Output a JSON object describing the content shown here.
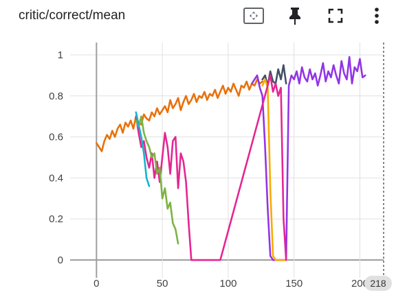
{
  "card": {
    "title": "critic/correct/mean"
  },
  "toolbar": {
    "fit_icon": "fit-domain-icon",
    "pin_icon": "pin-icon",
    "fullscreen_icon": "fullscreen-icon",
    "more_icon": "more-vert-icon"
  },
  "badge": {
    "step": "218"
  },
  "chart_data": {
    "type": "line",
    "title": "critic/correct/mean",
    "xlabel": "",
    "ylabel": "",
    "xlim": [
      -20,
      218
    ],
    "ylim": [
      -0.06,
      1.06
    ],
    "x_ticks": [
      0,
      50,
      100,
      150,
      200
    ],
    "y_ticks": [
      0,
      0.2,
      0.4,
      0.6,
      0.8,
      1
    ],
    "x_tick_labels": [
      "0",
      "50",
      "100",
      "150",
      "200"
    ],
    "y_tick_labels": [
      "0",
      "0.2",
      "0.4",
      "0.6",
      "0.8",
      "1"
    ],
    "grid": true,
    "legend": "none",
    "series": [
      {
        "color": "#e8710a",
        "x": [
          0,
          2,
          4,
          6,
          8,
          10,
          12,
          14,
          16,
          18,
          20,
          22,
          24,
          26,
          28,
          30,
          32,
          34,
          36,
          38,
          40,
          42,
          44,
          46,
          48,
          50,
          52,
          54,
          56,
          58,
          60,
          62,
          64,
          66,
          68,
          70,
          72,
          74,
          76,
          78,
          80,
          82,
          84,
          86,
          88,
          90,
          92,
          94,
          96,
          98,
          100,
          102,
          104,
          106,
          108,
          110,
          112,
          114,
          116,
          118,
          120,
          122,
          124,
          126
        ],
        "y": [
          0.57,
          0.55,
          0.53,
          0.58,
          0.61,
          0.59,
          0.63,
          0.6,
          0.64,
          0.66,
          0.62,
          0.67,
          0.65,
          0.68,
          0.64,
          0.7,
          0.67,
          0.66,
          0.71,
          0.69,
          0.68,
          0.72,
          0.7,
          0.74,
          0.71,
          0.73,
          0.75,
          0.72,
          0.78,
          0.74,
          0.76,
          0.79,
          0.73,
          0.77,
          0.8,
          0.76,
          0.78,
          0.81,
          0.77,
          0.8,
          0.79,
          0.82,
          0.78,
          0.81,
          0.8,
          0.83,
          0.79,
          0.82,
          0.85,
          0.81,
          0.84,
          0.82,
          0.86,
          0.83,
          0.8,
          0.85,
          0.84,
          0.87,
          0.83,
          0.86,
          0.85,
          0.88,
          0.86,
          0.87
        ]
      },
      {
        "color": "#425066",
        "x": [
          126,
          128,
          130,
          132,
          134,
          136,
          138,
          140,
          142,
          144
        ],
        "y": [
          0.88,
          0.9,
          0.85,
          0.92,
          0.87,
          0.86,
          0.93,
          0.88,
          0.95,
          0.86
        ]
      },
      {
        "color": "#9334e6",
        "x": [
          118,
          120,
          122,
          124,
          126,
          128,
          130,
          132,
          134,
          136,
          138,
          140,
          142,
          144,
          146,
          148,
          150,
          152,
          154,
          156,
          158,
          160,
          162,
          164,
          166,
          168,
          170,
          172,
          174,
          176,
          178,
          180,
          182,
          184,
          186,
          188,
          190,
          192,
          194,
          196,
          198,
          200,
          202,
          204
        ],
        "y": [
          0.86,
          0.88,
          0.9,
          0.84,
          0.8,
          0.55,
          0.25,
          0.02,
          0.0,
          0.0,
          0.0,
          0.0,
          0.0,
          0.0,
          0.85,
          0.9,
          0.88,
          0.92,
          0.86,
          0.94,
          0.89,
          0.87,
          0.93,
          0.88,
          0.91,
          0.85,
          0.9,
          0.96,
          0.87,
          0.92,
          0.89,
          0.95,
          0.9,
          0.86,
          0.97,
          0.91,
          0.88,
          0.99,
          0.86,
          0.94,
          0.92,
          0.98,
          0.89,
          0.9
        ]
      },
      {
        "color": "#f9ab00",
        "x": [
          126,
          128,
          130,
          132,
          134,
          136,
          138,
          140,
          142,
          144
        ],
        "y": [
          0.85,
          0.88,
          0.84,
          0.34,
          0.02,
          0.0,
          0.0,
          0.0,
          0.0,
          0.0
        ]
      },
      {
        "color": "#e52592",
        "x": [
          30,
          32,
          34,
          36,
          38,
          40,
          42,
          44,
          46,
          48,
          50,
          52,
          54,
          56,
          58,
          60,
          62,
          64,
          66,
          68,
          70,
          72,
          74,
          76,
          78,
          80,
          82,
          84,
          86,
          88,
          90,
          92,
          94,
          130,
          132,
          134,
          136,
          138,
          140,
          142,
          144
        ],
        "y": [
          0.7,
          0.62,
          0.55,
          0.58,
          0.5,
          0.45,
          0.52,
          0.4,
          0.48,
          0.38,
          0.5,
          0.62,
          0.55,
          0.42,
          0.58,
          0.6,
          0.35,
          0.52,
          0.48,
          0.38,
          0.18,
          0.0,
          0.0,
          0.0,
          0.0,
          0.0,
          0.0,
          0.0,
          0.0,
          0.0,
          0.0,
          0.0,
          0.0,
          0.85,
          0.9,
          0.82,
          0.86,
          0.8,
          0.84,
          0.2,
          0.0
        ]
      },
      {
        "color": "#7cb342",
        "x": [
          30,
          32,
          34,
          36,
          38,
          40,
          42,
          44,
          46,
          48,
          50,
          52,
          54,
          56,
          58,
          60,
          62
        ],
        "y": [
          0.68,
          0.65,
          0.7,
          0.62,
          0.58,
          0.55,
          0.5,
          0.52,
          0.42,
          0.45,
          0.3,
          0.35,
          0.25,
          0.28,
          0.18,
          0.15,
          0.08
        ]
      },
      {
        "color": "#12b5cb",
        "x": [
          30,
          32,
          34,
          36,
          38,
          40
        ],
        "y": [
          0.72,
          0.66,
          0.6,
          0.52,
          0.4,
          0.36
        ]
      }
    ]
  }
}
